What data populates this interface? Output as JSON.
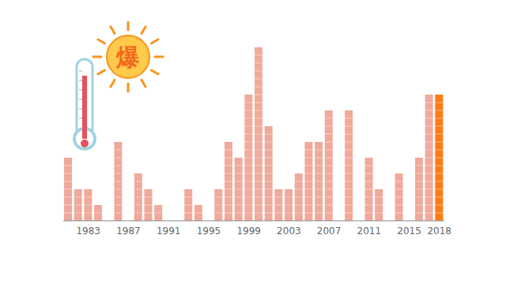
{
  "chart_data": {
    "type": "bar",
    "annotations": [
      "爆"
    ],
    "categories": [
      null,
      null,
      "1983",
      null,
      null,
      null,
      "1987",
      null,
      null,
      null,
      "1991",
      null,
      null,
      null,
      "1995",
      null,
      null,
      null,
      "1999",
      null,
      null,
      null,
      "2003",
      null,
      null,
      null,
      "2007",
      null,
      null,
      null,
      "2011",
      null,
      null,
      null,
      "2015",
      null,
      null,
      "2018"
    ],
    "values": [
      8,
      4,
      4,
      2,
      0,
      10,
      0,
      6,
      4,
      2,
      0,
      0,
      4,
      2,
      0,
      4,
      10,
      8,
      16,
      22,
      12,
      4,
      4,
      6,
      10,
      10,
      14,
      0,
      14,
      0,
      8,
      4,
      0,
      6,
      0,
      8,
      16,
      16
    ],
    "colors": [
      "#f0a99a",
      "#f0a99a",
      "#f0a99a",
      "#f0a99a",
      "#f0a99a",
      "#f0a99a",
      "#f0a99a",
      "#f0a99a",
      "#f0a99a",
      "#f0a99a",
      "#f0a99a",
      "#f0a99a",
      "#f0a99a",
      "#f0a99a",
      "#f0a99a",
      "#f0a99a",
      "#f0a99a",
      "#f0a99a",
      "#f0a99a",
      "#f0a99a",
      "#f0a99a",
      "#f0a99a",
      "#f0a99a",
      "#f0a99a",
      "#f0a99a",
      "#f0a99a",
      "#f0a99a",
      "#f0a99a",
      "#f0a99a",
      "#f0a99a",
      "#f0a99a",
      "#f0a99a",
      "#f0a99a",
      "#f0a99a",
      "#f0a99a",
      "#f0a99a",
      "#f0a99a",
      "#ff7a12"
    ],
    "ylim": [
      0,
      22
    ],
    "grid": false,
    "tick_labels": "x"
  }
}
